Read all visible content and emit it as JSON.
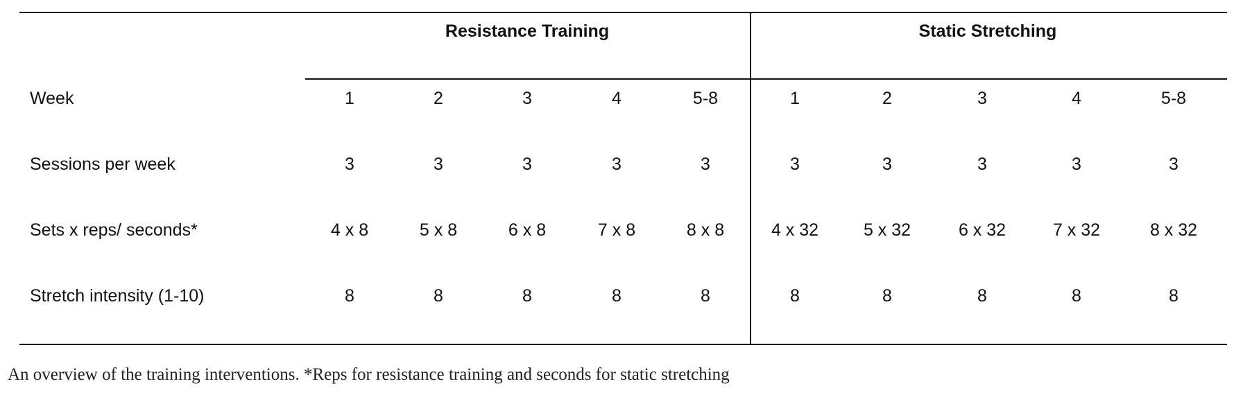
{
  "table": {
    "groups": [
      "Resistance Training",
      "Static Stretching"
    ],
    "rows": [
      {
        "label": "Week",
        "values": [
          "1",
          "2",
          "3",
          "4",
          "5-8",
          "1",
          "2",
          "3",
          "4",
          "5-8"
        ]
      },
      {
        "label": "Sessions per week",
        "values": [
          "3",
          "3",
          "3",
          "3",
          "3",
          "3",
          "3",
          "3",
          "3",
          "3"
        ]
      },
      {
        "label": "Sets x reps/ seconds*",
        "values": [
          "4 x 8",
          "5 x 8",
          "6 x 8",
          "7 x 8",
          "8 x 8",
          "4 x 32",
          "5 x 32",
          "6 x 32",
          "7 x 32",
          "8 x 32"
        ]
      },
      {
        "label": "Stretch intensity (1-10)",
        "values": [
          "8",
          "8",
          "8",
          "8",
          "8",
          "8",
          "8",
          "8",
          "8",
          "8"
        ]
      }
    ]
  },
  "caption": "An overview of the training interventions. *Reps for resistance training and seconds for static stretching"
}
